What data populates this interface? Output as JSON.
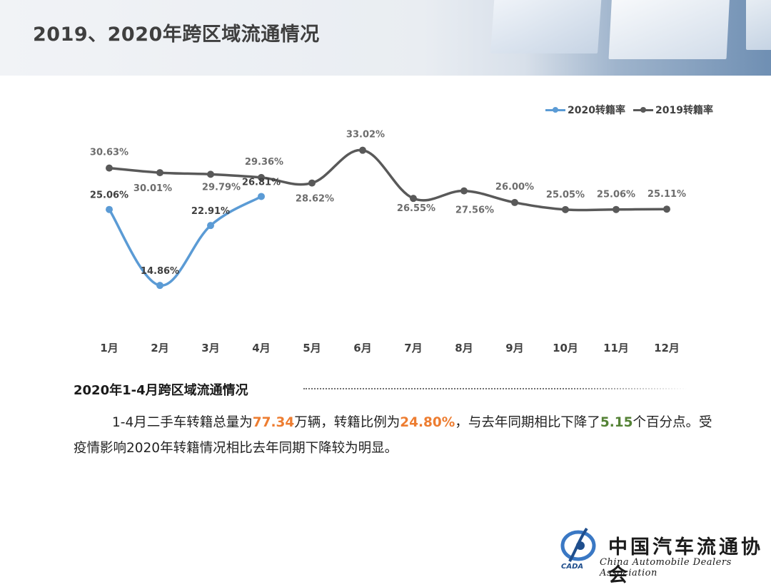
{
  "page": {
    "title": "2019、2020年跨区域流通情况"
  },
  "chart_data": {
    "type": "line",
    "categories": [
      "1月",
      "2月",
      "3月",
      "4月",
      "5月",
      "6月",
      "7月",
      "8月",
      "9月",
      "10月",
      "11月",
      "12月"
    ],
    "series": [
      {
        "name": "2020转籍率",
        "color": "#5b9bd5",
        "values": [
          25.06,
          14.86,
          22.91,
          26.81,
          null,
          null,
          null,
          null,
          null,
          null,
          null,
          null
        ],
        "labels": [
          "25.06%",
          "14.86%",
          "22.91%",
          "26.81%"
        ]
      },
      {
        "name": "2019转籍率",
        "color": "#595959",
        "values": [
          30.63,
          30.01,
          29.79,
          29.36,
          28.62,
          33.02,
          26.55,
          27.56,
          26.0,
          25.05,
          25.06,
          25.11
        ],
        "labels": [
          "30.63%",
          "30.01%",
          "29.79%",
          "29.36%",
          "28.62%",
          "33.02%",
          "26.55%",
          "27.56%",
          "26.00%",
          "25.05%",
          "25.06%",
          "25.11%"
        ]
      }
    ],
    "legend_position": "top-right",
    "grid": false,
    "ylim": [
      12,
      35
    ]
  },
  "section": {
    "title": "2020年1-4月跨区域流通情况",
    "t1": "1-4月二手车转籍总量为",
    "v1": "77.34",
    "t2": "万辆，转籍比例为",
    "v2": "24.80%",
    "t3": "，与去年同期相比下降了",
    "v3": "5.15",
    "t4": "个百分点。受疫情影响2020年转籍情况相比去年同期下降较为明显。",
    "highlight_orange": "#ed7d31",
    "highlight_green": "#548235"
  },
  "logo": {
    "abbr": "CADA",
    "cn": "中国汽车流通协会",
    "en": "China Automobile Dealers Association"
  }
}
